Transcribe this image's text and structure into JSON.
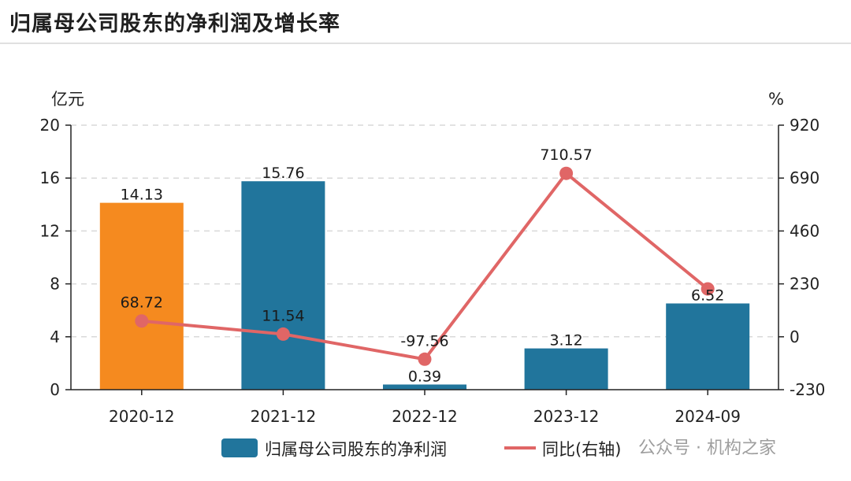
{
  "title": "归属母公司股东的净利润及增长率",
  "watermark": "公众号 · 机构之家",
  "chart_data": {
    "type": "bar",
    "categories": [
      "2020-12",
      "2021-12",
      "2022-12",
      "2023-12",
      "2024-09"
    ],
    "left_axis": {
      "unit": "亿元",
      "ylim": [
        0,
        20
      ],
      "ticks": [
        0,
        4,
        8,
        12,
        16,
        20
      ]
    },
    "right_axis": {
      "unit": "%",
      "ylim": [
        -230,
        920
      ],
      "ticks": [
        -230,
        0,
        230,
        460,
        690,
        920
      ]
    },
    "grid": true,
    "legend_position": "bottom",
    "series": [
      {
        "name": "归属母公司股东的净利润",
        "kind": "bar",
        "axis": "left",
        "color": "#21759c",
        "highlight_color": "#f58a1f",
        "highlight_index": 0,
        "values": [
          14.13,
          15.76,
          0.39,
          3.12,
          6.52
        ],
        "labels": [
          "14.13",
          "15.76",
          "0.39",
          "3.12",
          "6.52"
        ]
      },
      {
        "name": "同比(右轴)",
        "kind": "line",
        "axis": "right",
        "color": "#e06666",
        "values": [
          68.72,
          11.54,
          -97.56,
          710.57,
          208
        ],
        "labels": [
          "68.72",
          "11.54",
          "-97.56",
          "710.57",
          ""
        ]
      }
    ]
  }
}
